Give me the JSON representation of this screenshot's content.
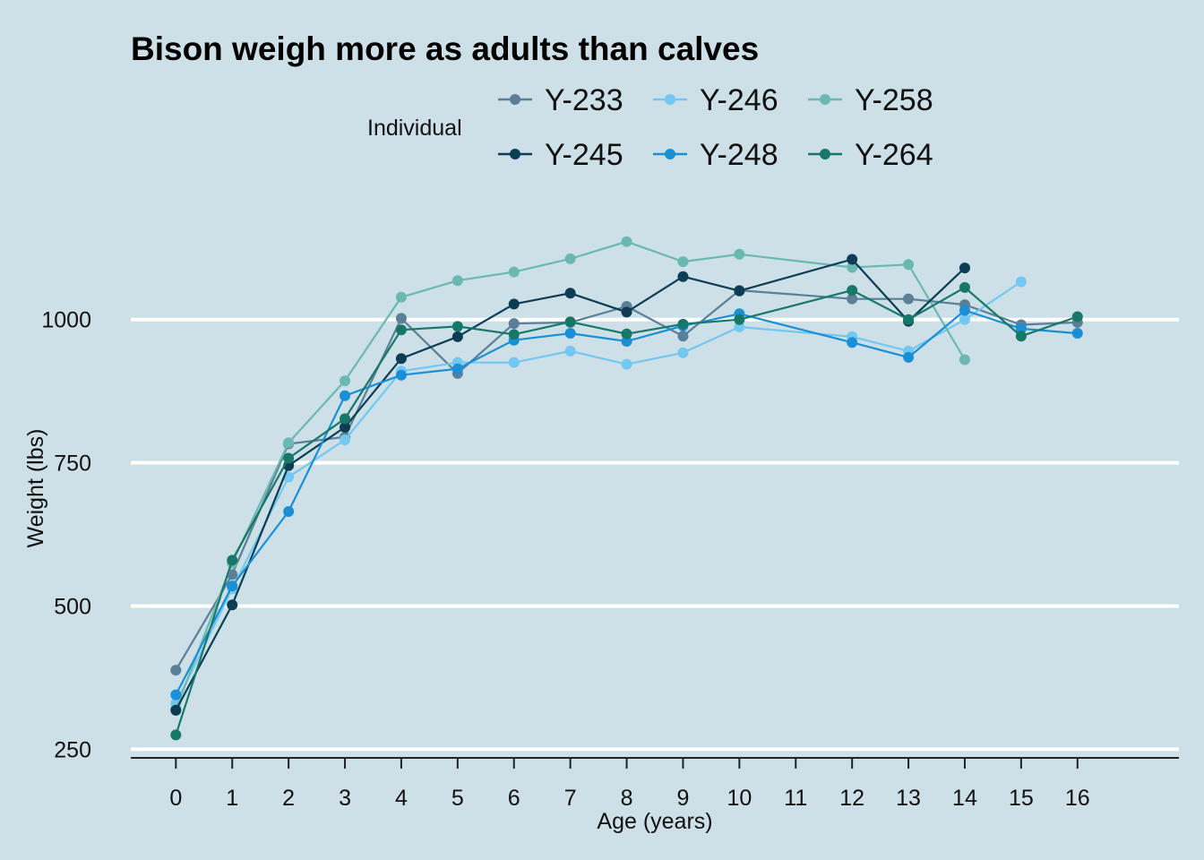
{
  "chart_data": {
    "type": "line",
    "title": "Bison weigh more as adults than calves",
    "xlabel": "Age (years)",
    "ylabel": "Weight (lbs)",
    "xlim": [
      -0.8,
      17.8
    ],
    "ylim": [
      235,
      1245
    ],
    "x_ticks": [
      0,
      1,
      2,
      3,
      4,
      5,
      6,
      7,
      8,
      9,
      10,
      11,
      12,
      13,
      14,
      15,
      16
    ],
    "y_ticks": [
      250,
      500,
      750,
      1000
    ],
    "grid": "horizontal",
    "legend": {
      "title": "Individual",
      "position": "top",
      "order": [
        "Y-233",
        "Y-246",
        "Y-258",
        "Y-245",
        "Y-248",
        "Y-264"
      ]
    },
    "series": [
      {
        "name": "Y-233",
        "color": "#5b7f96",
        "x": [
          0,
          1,
          2,
          3,
          4,
          5,
          6,
          7,
          8,
          9,
          10,
          12,
          13,
          14,
          15,
          16
        ],
        "y": [
          388,
          555,
          783,
          795,
          1002,
          906,
          993,
          995,
          1023,
          971,
          1051,
          1036,
          1036,
          1026,
          991,
          995
        ]
      },
      {
        "name": "Y-246",
        "color": "#72c8f0",
        "x": [
          0,
          1,
          2,
          3,
          4,
          5,
          6,
          7,
          8,
          9,
          10,
          12,
          13,
          14,
          15
        ],
        "y": [
          330,
          530,
          725,
          790,
          910,
          925,
          925,
          945,
          922,
          942,
          987,
          970,
          945,
          1000,
          1066
        ]
      },
      {
        "name": "Y-258",
        "color": "#6bb8b3",
        "x": [
          0,
          1,
          2,
          3,
          4,
          5,
          6,
          7,
          8,
          9,
          10,
          12,
          13,
          14
        ],
        "y": [
          320,
          575,
          785,
          893,
          1039,
          1068,
          1083,
          1106,
          1136,
          1101,
          1114,
          1091,
          1096,
          930
        ]
      },
      {
        "name": "Y-245",
        "color": "#0d3d55",
        "x": [
          0,
          1,
          2,
          3,
          4,
          5,
          6,
          7,
          8,
          9,
          10,
          12,
          13,
          14
        ],
        "y": [
          318,
          502,
          745,
          812,
          932,
          970,
          1027,
          1046,
          1013,
          1075,
          1050,
          1105,
          997,
          1090
        ]
      },
      {
        "name": "Y-248",
        "color": "#1b8fd6",
        "x": [
          0,
          1,
          2,
          3,
          4,
          5,
          6,
          7,
          8,
          9,
          10,
          12,
          13,
          14,
          15,
          16
        ],
        "y": [
          345,
          535,
          665,
          867,
          903,
          914,
          964,
          976,
          962,
          989,
          1010,
          960,
          934,
          1016,
          984,
          976
        ]
      },
      {
        "name": "Y-264",
        "color": "#177869",
        "x": [
          0,
          1,
          2,
          3,
          4,
          5,
          6,
          7,
          8,
          9,
          10,
          12,
          13,
          14,
          15,
          16
        ],
        "y": [
          275,
          580,
          758,
          827,
          982,
          988,
          974,
          996,
          975,
          992,
          1000,
          1051,
          1000,
          1056,
          971,
          1005
        ]
      }
    ]
  }
}
